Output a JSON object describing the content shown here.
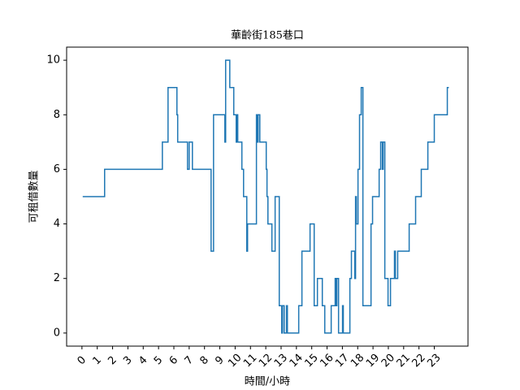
{
  "chart_data": {
    "type": "line",
    "drawstyle": "steps-post",
    "title": "華齡街185巷口",
    "xlabel": "時間/小時",
    "ylabel": "可租借數量",
    "x": [
      0.05,
      1.48,
      5.25,
      5.62,
      6.2,
      6.25,
      6.89,
      7.0,
      7.21,
      8.43,
      8.59,
      9.33,
      9.38,
      9.65,
      9.91,
      10.07,
      10.12,
      10.17,
      10.44,
      10.55,
      10.76,
      10.81,
      11.39,
      11.45,
      11.5,
      11.61,
      12.03,
      12.08,
      12.14,
      12.4,
      12.61,
      12.88,
      13.04,
      13.09,
      13.2,
      13.35,
      13.41,
      14.15,
      14.36,
      14.89,
      15.16,
      15.37,
      15.69,
      15.85,
      16.27,
      16.53,
      16.59,
      16.64,
      16.75,
      17.01,
      17.06,
      17.49,
      17.59,
      17.81,
      17.86,
      17.91,
      18.02,
      18.12,
      18.23,
      18.34,
      18.87,
      18.97,
      19.4,
      19.5,
      19.61,
      19.66,
      19.77,
      19.98,
      20.14,
      20.4,
      20.46,
      20.61,
      21.36,
      21.78,
      22.15,
      22.58,
      23.0,
      23.85,
      23.95
    ],
    "series": [
      {
        "name": "可租借數量",
        "color": "#1f77b4",
        "values": [
          5,
          6,
          7,
          9,
          8,
          7,
          6,
          7,
          6,
          3,
          8,
          7,
          10,
          9,
          8,
          7,
          8,
          7,
          6,
          5,
          3,
          4,
          8,
          7,
          8,
          7,
          6,
          5,
          4,
          3,
          5,
          1,
          0,
          1,
          0,
          1,
          0,
          1,
          3,
          4,
          1,
          2,
          1,
          0,
          1,
          2,
          1,
          2,
          0,
          1,
          0,
          2,
          3,
          2,
          5,
          4,
          6,
          8,
          9,
          1,
          4,
          5,
          6,
          7,
          6,
          7,
          2,
          1,
          2,
          3,
          2,
          3,
          4,
          5,
          6,
          7,
          8,
          9,
          9
        ]
      }
    ],
    "xlim": [
      -1.0,
      25.2
    ],
    "ylim": [
      -0.48,
      10.48
    ],
    "xticks": [
      0,
      1,
      2,
      3,
      4,
      5,
      6,
      7,
      8,
      9,
      10,
      11,
      12,
      13,
      14,
      15,
      16,
      17,
      18,
      19,
      20,
      21,
      22,
      23
    ],
    "yticks": [
      0,
      2,
      4,
      6,
      8,
      10
    ]
  }
}
